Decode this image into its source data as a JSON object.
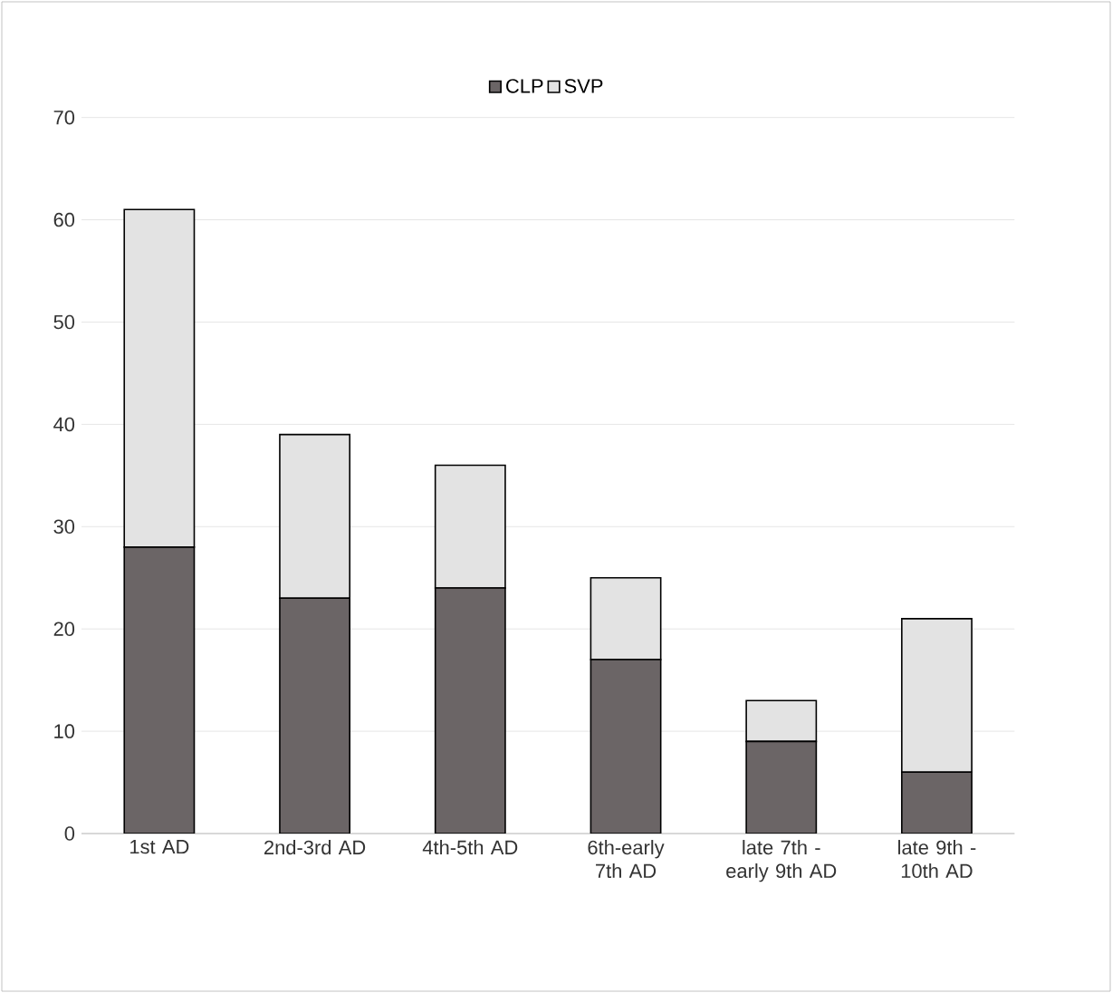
{
  "chart_data": {
    "type": "bar",
    "stacked": true,
    "categories": [
      "1st AD",
      "2nd-3rd AD",
      "4th-5th AD",
      "6th-early 7th AD",
      "late 7th - early 9th AD",
      "late 9th - 10th AD"
    ],
    "series": [
      {
        "name": "CLP",
        "color": "#6b6566",
        "values": [
          28,
          23,
          24,
          17,
          9,
          6
        ]
      },
      {
        "name": "SVP",
        "color": "#e3e3e3",
        "values": [
          33,
          16,
          12,
          8,
          4,
          15
        ]
      }
    ],
    "ylim": [
      0,
      70
    ],
    "yticks": [
      0,
      10,
      20,
      30,
      40,
      50,
      60,
      70
    ],
    "grid": "y",
    "legend": "top"
  }
}
